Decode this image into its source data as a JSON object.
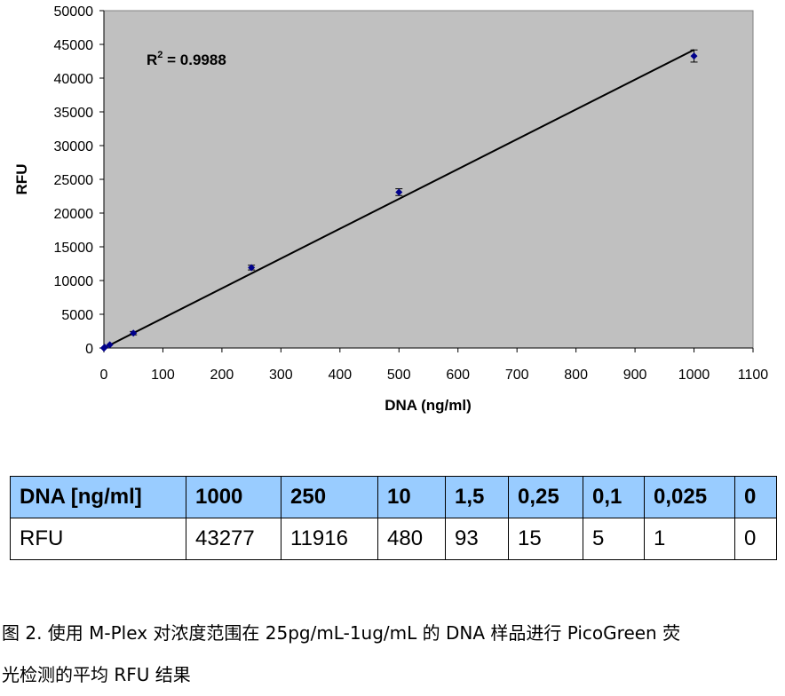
{
  "chart_data": {
    "type": "scatter",
    "xlabel": "DNA (ng/ml)",
    "ylabel": "RFU",
    "xlim": [
      0,
      1100
    ],
    "ylim": [
      0,
      50000
    ],
    "x_ticks": [
      0,
      100,
      200,
      300,
      400,
      500,
      600,
      700,
      800,
      900,
      1000,
      1100
    ],
    "y_ticks": [
      0,
      5000,
      10000,
      15000,
      20000,
      25000,
      30000,
      35000,
      40000,
      45000,
      50000
    ],
    "grid": false,
    "plot_background": "#c0c0c0",
    "marker_color": "#00008b",
    "series": [
      {
        "x": [
          0,
          0.025,
          0.1,
          0.25,
          1.5,
          10,
          50,
          250,
          500,
          1000
        ],
        "y": [
          0,
          1,
          5,
          15,
          93,
          480,
          2200,
          11916,
          23100,
          43277
        ],
        "error": [
          0,
          0,
          0,
          0,
          0,
          0,
          250,
          350,
          500,
          900
        ]
      }
    ],
    "trendline": {
      "type": "linear",
      "x": [
        0,
        1000
      ],
      "y": [
        0,
        44200
      ]
    },
    "annotation": {
      "r2_prefix": "R",
      "r2_sup": "2",
      "r2_value": " = 0.9988"
    }
  },
  "table": {
    "rows": [
      [
        "DNA [ng/ml]",
        "1000",
        "250",
        "10",
        "1,5",
        "0,25",
        "0,1",
        "0,025",
        "0"
      ],
      [
        "RFU",
        "43277",
        "11916",
        "480",
        "93",
        "15",
        "5",
        "1",
        "0"
      ]
    ]
  },
  "caption": {
    "line1": "图 2. 使用 M-Plex 对浓度范围在 25pg/mL-1ug/mL 的 DNA 样品进行 PicoGreen 荧",
    "line2": "光检测的平均 RFU 结果"
  }
}
